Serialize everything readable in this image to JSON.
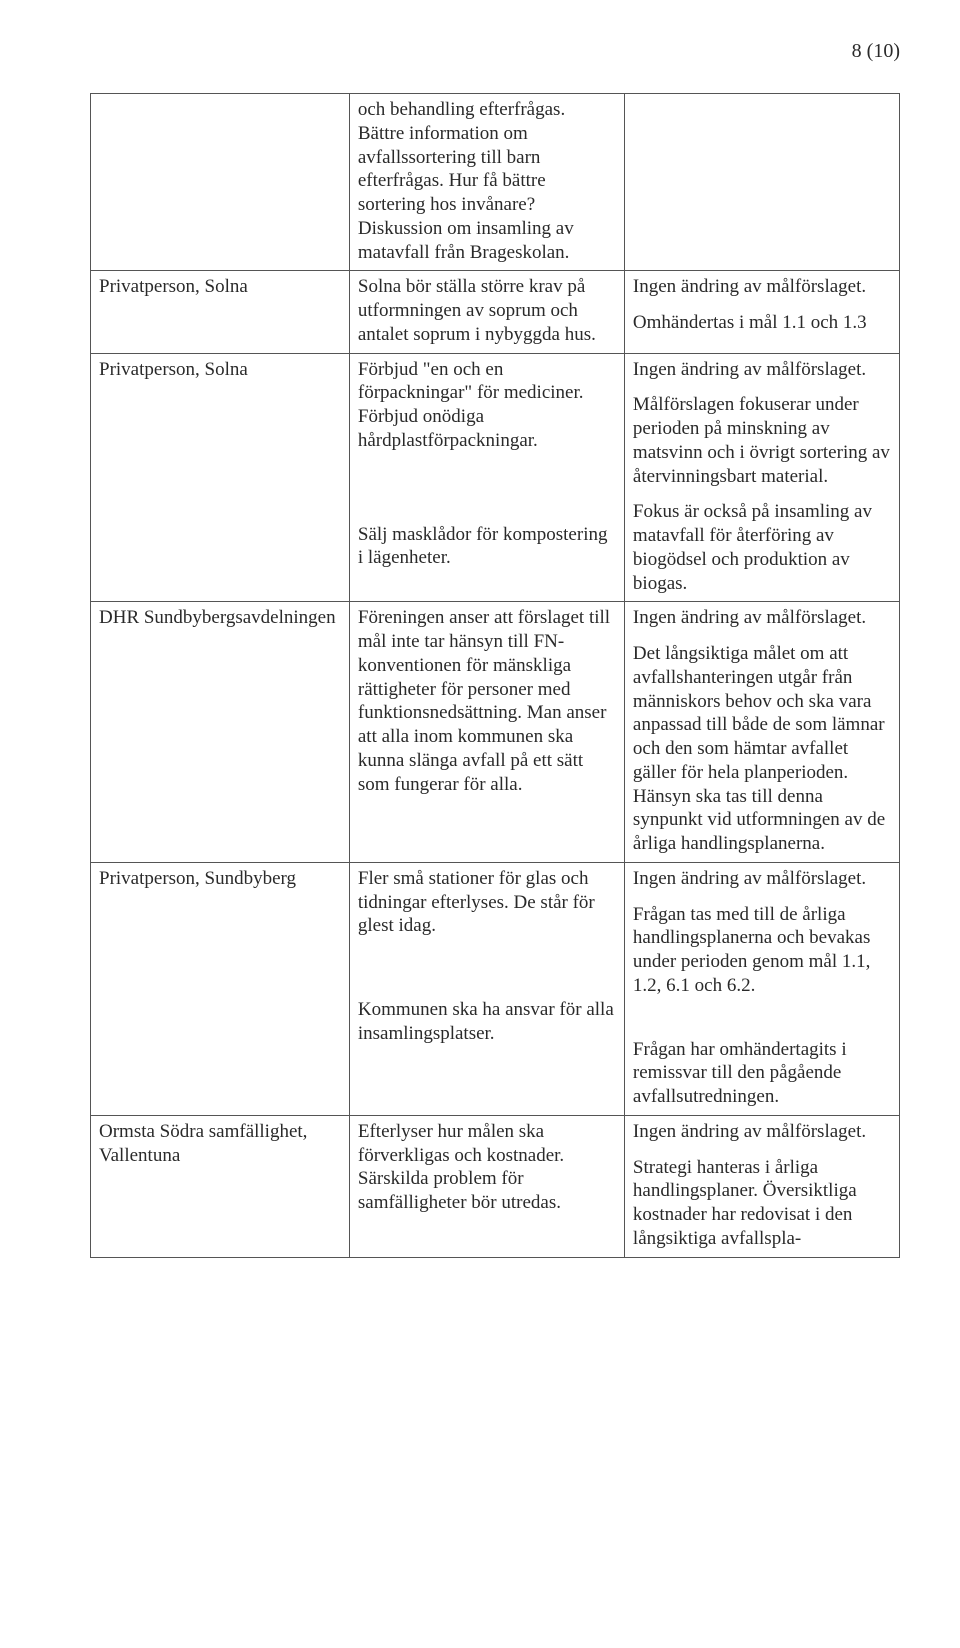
{
  "pageNumber": "8 (10)",
  "table": {
    "rows": [
      {
        "col1": [
          ""
        ],
        "col2": [
          "och behandling efterfrågas. Bättre information om avfallssortering till barn efterfrågas. Hur få bättre sortering hos invånare? Diskussion om insamling av matavfall från Brageskolan."
        ],
        "col3": [
          ""
        ]
      },
      {
        "col1": [
          "Privatperson, Solna"
        ],
        "col2": [
          "Solna bör ställa större krav på utformningen av soprum och antalet soprum i nybyggda hus."
        ],
        "col3": [
          "Ingen ändring av målförslaget.",
          "Omhändertas i mål 1.1 och 1.3"
        ]
      },
      {
        "col1": [
          "Privatperson, Solna"
        ],
        "col2": [
          "Förbjud \"en och en förpackningar\" för mediciner. Förbjud onödiga hårdplastförpackningar.",
          "Sälj masklådor för kompostering i lägenheter."
        ],
        "col3": [
          "Ingen ändring av målförslaget.",
          "Målförslagen fokuserar under perioden på minskning av matsvinn och i övrigt sortering av återvinningsbart material.",
          "Fokus är också på insamling av matavfall för återföring av biogödsel och produktion av biogas."
        ]
      },
      {
        "col1": [
          "DHR Sundbybergsavdelningen"
        ],
        "col2": [
          "Föreningen anser att förslaget till mål inte tar hänsyn till FN-konventionen för mänskliga rättigheter för personer med funktionsnedsättning. Man anser att alla inom kommunen ska kunna slänga avfall på ett sätt som fungerar för alla."
        ],
        "col3": [
          "Ingen ändring av målförslaget.",
          "Det långsiktiga målet om att avfallshanteringen utgår från människors behov och ska vara anpassad till både de som lämnar och den som hämtar avfallet gäller för hela planperioden. Hänsyn ska tas till denna synpunkt vid utformningen av de årliga handlingsplanerna."
        ]
      },
      {
        "col1": [
          "Privatperson, Sundbyberg"
        ],
        "col2": [
          "Fler små stationer för glas och tidningar efterlyses. De står för glest idag.",
          "Kommunen ska ha ansvar för alla insamlingsplatser."
        ],
        "col3": [
          "Ingen ändring av målförslaget.",
          "Frågan tas med till de årliga handlingsplanerna och bevakas under perioden genom mål 1.1, 1.2, 6.1 och 6.2.",
          "Frågan har omhändertagits i remissvar till den pågående avfallsutredningen."
        ]
      },
      {
        "col1": [
          "Ormsta Södra samfällighet, Vallentuna"
        ],
        "col2": [
          "Efterlyser hur målen ska förverkligas och kostnader. Särskilda problem för samfälligheter bör utredas."
        ],
        "col3": [
          "Ingen ändring av målförslaget.",
          "Strategi hanteras i årliga handlingsplaner. Översiktliga kostnader har redovisat i den långsiktiga avfallspla-"
        ]
      }
    ]
  }
}
